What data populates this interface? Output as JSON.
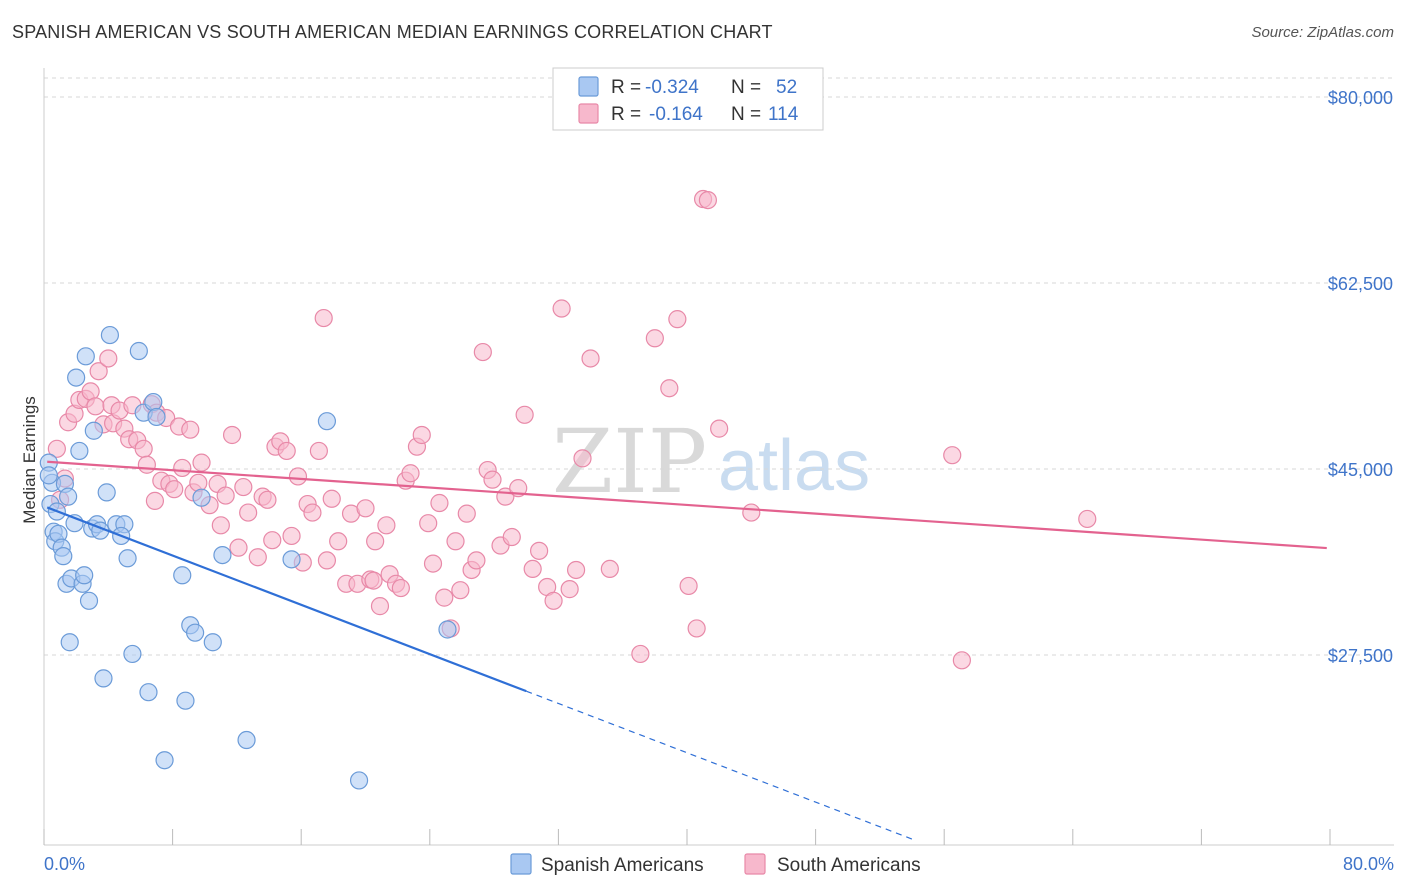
{
  "title": "SPANISH AMERICAN VS SOUTH AMERICAN MEDIAN EARNINGS CORRELATION CHART",
  "source": "Source: ZipAtlas.com",
  "watermark": {
    "zip": "ZIP",
    "atlas": "atlas"
  },
  "colors": {
    "blue_fill": "#a9c8f2",
    "blue_stroke": "#6b9bd8",
    "blue_line": "#2f6fd6",
    "pink_fill": "#f7b8cc",
    "pink_stroke": "#e889a8",
    "pink_line": "#e3628f",
    "grid": "#d7d7d7",
    "axis_label": "#3f74c9"
  },
  "legend": {
    "r_label": "R =",
    "n_label": "N =",
    "rows": [
      {
        "r": "-0.324",
        "n": "52",
        "series": "blue"
      },
      {
        "r": "-0.164",
        "n": "114",
        "series": "pink"
      }
    ]
  },
  "chart_data": {
    "type": "scatter",
    "title": "SPANISH AMERICAN VS SOUTH AMERICAN MEDIAN EARNINGS CORRELATION CHART",
    "xlabel": "",
    "ylabel": "Median Earnings",
    "xlim": [
      0,
      80
    ],
    "ylim": [
      10000,
      81500
    ],
    "x_tick_labels": {
      "min": "0.0%",
      "max": "80.0%"
    },
    "y_ticks": [
      {
        "value": 27500,
        "label": "$27,500"
      },
      {
        "value": 45000,
        "label": "$45,000"
      },
      {
        "value": 62500,
        "label": "$62,500"
      },
      {
        "value": 80000,
        "label": "$80,000"
      }
    ],
    "grid": true,
    "series": [
      {
        "name": "Spanish Americans",
        "color": "blue",
        "r": -0.324,
        "n": 52,
        "trend": {
          "x_start": 0.2,
          "x_solid_end": 30,
          "x_dash_end": 54,
          "y_at_0": 41500,
          "slope": -580
        },
        "points": [
          [
            0.3,
            45600
          ],
          [
            0.5,
            43700
          ],
          [
            0.4,
            41700
          ],
          [
            0.6,
            39100
          ],
          [
            0.8,
            41000
          ],
          [
            0.7,
            38200
          ],
          [
            0.9,
            38900
          ],
          [
            1.1,
            37600
          ],
          [
            1.3,
            43600
          ],
          [
            1.2,
            36800
          ],
          [
            1.5,
            42400
          ],
          [
            1.4,
            34200
          ],
          [
            1.7,
            34700
          ],
          [
            1.6,
            28700
          ],
          [
            1.9,
            39900
          ],
          [
            2.2,
            46700
          ],
          [
            2.0,
            53600
          ],
          [
            2.6,
            55600
          ],
          [
            2.4,
            34200
          ],
          [
            2.8,
            32600
          ],
          [
            3.1,
            48600
          ],
          [
            3.0,
            39400
          ],
          [
            3.3,
            39800
          ],
          [
            3.5,
            39200
          ],
          [
            3.7,
            25300
          ],
          [
            4.1,
            57600
          ],
          [
            3.9,
            42800
          ],
          [
            4.5,
            39800
          ],
          [
            5.0,
            39800
          ],
          [
            5.2,
            36600
          ],
          [
            5.5,
            27600
          ],
          [
            5.9,
            56100
          ],
          [
            6.2,
            50300
          ],
          [
            6.5,
            24000
          ],
          [
            6.8,
            51300
          ],
          [
            7.0,
            49900
          ],
          [
            7.5,
            17600
          ],
          [
            8.6,
            35000
          ],
          [
            8.8,
            23200
          ],
          [
            9.1,
            30300
          ],
          [
            9.4,
            29600
          ],
          [
            9.8,
            42300
          ],
          [
            10.5,
            28700
          ],
          [
            11.1,
            36900
          ],
          [
            12.6,
            19500
          ],
          [
            15.4,
            36500
          ],
          [
            17.6,
            49500
          ],
          [
            19.6,
            15700
          ],
          [
            0.3,
            44400
          ],
          [
            2.5,
            35000
          ],
          [
            4.8,
            38700
          ],
          [
            25.1,
            29900
          ]
        ]
      },
      {
        "name": "South Americans",
        "color": "pink",
        "r": -0.164,
        "n": 114,
        "trend": {
          "x_start": 0.2,
          "x_end": 79.8,
          "y_at_0": 45700,
          "slope": -102
        },
        "points": [
          [
            0.8,
            46900
          ],
          [
            1.5,
            49400
          ],
          [
            1.3,
            44100
          ],
          [
            1.0,
            42100
          ],
          [
            1.9,
            50200
          ],
          [
            2.2,
            51500
          ],
          [
            2.6,
            51600
          ],
          [
            2.9,
            52300
          ],
          [
            3.2,
            50900
          ],
          [
            3.4,
            54200
          ],
          [
            3.7,
            49200
          ],
          [
            4.0,
            55400
          ],
          [
            4.2,
            51000
          ],
          [
            4.3,
            49300
          ],
          [
            4.7,
            50500
          ],
          [
            5.0,
            48800
          ],
          [
            5.3,
            47800
          ],
          [
            5.5,
            51000
          ],
          [
            5.8,
            47700
          ],
          [
            6.2,
            46900
          ],
          [
            6.4,
            45400
          ],
          [
            6.7,
            51100
          ],
          [
            6.9,
            42000
          ],
          [
            7.0,
            50300
          ],
          [
            7.3,
            43900
          ],
          [
            7.6,
            49800
          ],
          [
            7.8,
            43600
          ],
          [
            8.1,
            43100
          ],
          [
            8.4,
            49000
          ],
          [
            8.6,
            45100
          ],
          [
            9.1,
            48700
          ],
          [
            9.3,
            42800
          ],
          [
            9.6,
            43700
          ],
          [
            9.8,
            45600
          ],
          [
            10.3,
            41600
          ],
          [
            10.8,
            43600
          ],
          [
            11.0,
            39700
          ],
          [
            11.3,
            42500
          ],
          [
            11.7,
            48200
          ],
          [
            12.1,
            37600
          ],
          [
            12.4,
            43300
          ],
          [
            12.7,
            40900
          ],
          [
            13.3,
            36700
          ],
          [
            13.6,
            42400
          ],
          [
            13.9,
            42100
          ],
          [
            14.2,
            38300
          ],
          [
            14.4,
            47100
          ],
          [
            14.7,
            47600
          ],
          [
            15.1,
            46700
          ],
          [
            15.4,
            38700
          ],
          [
            15.8,
            44300
          ],
          [
            16.1,
            36200
          ],
          [
            16.4,
            41700
          ],
          [
            16.7,
            40900
          ],
          [
            17.1,
            46700
          ],
          [
            17.4,
            59200
          ],
          [
            17.6,
            36400
          ],
          [
            17.9,
            42200
          ],
          [
            18.3,
            38200
          ],
          [
            18.8,
            34200
          ],
          [
            19.1,
            40800
          ],
          [
            19.5,
            34200
          ],
          [
            20.0,
            41300
          ],
          [
            20.3,
            34600
          ],
          [
            20.6,
            38200
          ],
          [
            20.9,
            32100
          ],
          [
            21.3,
            39700
          ],
          [
            21.5,
            35100
          ],
          [
            21.9,
            34200
          ],
          [
            22.2,
            33800
          ],
          [
            22.5,
            43900
          ],
          [
            22.8,
            44600
          ],
          [
            23.2,
            47100
          ],
          [
            23.5,
            48200
          ],
          [
            23.9,
            39900
          ],
          [
            24.2,
            36100
          ],
          [
            24.6,
            41800
          ],
          [
            24.9,
            32900
          ],
          [
            25.3,
            30000
          ],
          [
            25.6,
            38200
          ],
          [
            25.9,
            33600
          ],
          [
            26.3,
            40800
          ],
          [
            26.6,
            35500
          ],
          [
            26.9,
            36400
          ],
          [
            27.3,
            56000
          ],
          [
            27.6,
            44900
          ],
          [
            27.9,
            44000
          ],
          [
            28.4,
            37800
          ],
          [
            28.7,
            42400
          ],
          [
            29.1,
            38600
          ],
          [
            29.5,
            43200
          ],
          [
            29.9,
            50100
          ],
          [
            30.4,
            35600
          ],
          [
            30.8,
            37300
          ],
          [
            31.3,
            33900
          ],
          [
            31.7,
            32600
          ],
          [
            32.2,
            60100
          ],
          [
            32.7,
            33700
          ],
          [
            33.1,
            35500
          ],
          [
            33.5,
            46000
          ],
          [
            34.0,
            55400
          ],
          [
            35.2,
            35600
          ],
          [
            37.1,
            27600
          ],
          [
            38.0,
            57300
          ],
          [
            38.9,
            52600
          ],
          [
            39.4,
            59100
          ],
          [
            40.1,
            34000
          ],
          [
            40.6,
            30000
          ],
          [
            41.0,
            70400
          ],
          [
            41.3,
            70300
          ],
          [
            42.0,
            48800
          ],
          [
            44.0,
            40900
          ],
          [
            56.5,
            46300
          ],
          [
            57.1,
            27000
          ],
          [
            64.9,
            40300
          ],
          [
            20.5,
            34500
          ]
        ]
      }
    ]
  },
  "bottom_legend": [
    {
      "label": "Spanish Americans",
      "color": "blue"
    },
    {
      "label": "South Americans",
      "color": "pink"
    }
  ]
}
